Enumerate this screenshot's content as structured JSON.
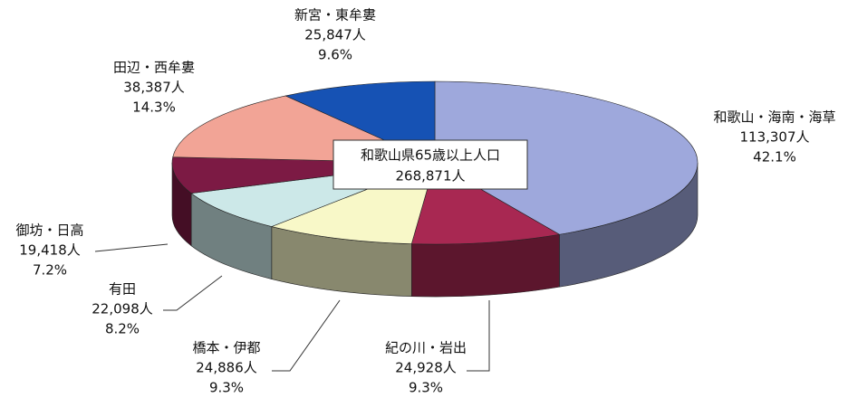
{
  "chart_data": {
    "type": "pie3d",
    "center_label": [
      "和歌山県65歳以上人口",
      "268,871人"
    ],
    "categories": [
      "和歌山・海南・海草",
      "紀の川・岩出",
      "橋本・伊都",
      "有田",
      "御坊・日高",
      "田辺・西牟婁",
      "新宮・東牟婁"
    ],
    "values": [
      113307,
      24928,
      24886,
      22098,
      19418,
      38387,
      25847
    ],
    "value_labels": [
      "113,307人",
      "24,928人",
      "24,886人",
      "22,098人",
      "19,418人",
      "38,387人",
      "25,847人"
    ],
    "percents": [
      42.1,
      9.3,
      9.3,
      8.2,
      7.2,
      14.3,
      9.6
    ],
    "percent_labels": [
      "42.1%",
      "9.3%",
      "9.3%",
      "8.2%",
      "7.2%",
      "14.3%",
      "9.6%"
    ],
    "colors": [
      "#9ea8dc",
      "#a82852",
      "#f8f8c8",
      "#cce8e8",
      "#7c1a44",
      "#f2a496",
      "#1652b4"
    ]
  }
}
